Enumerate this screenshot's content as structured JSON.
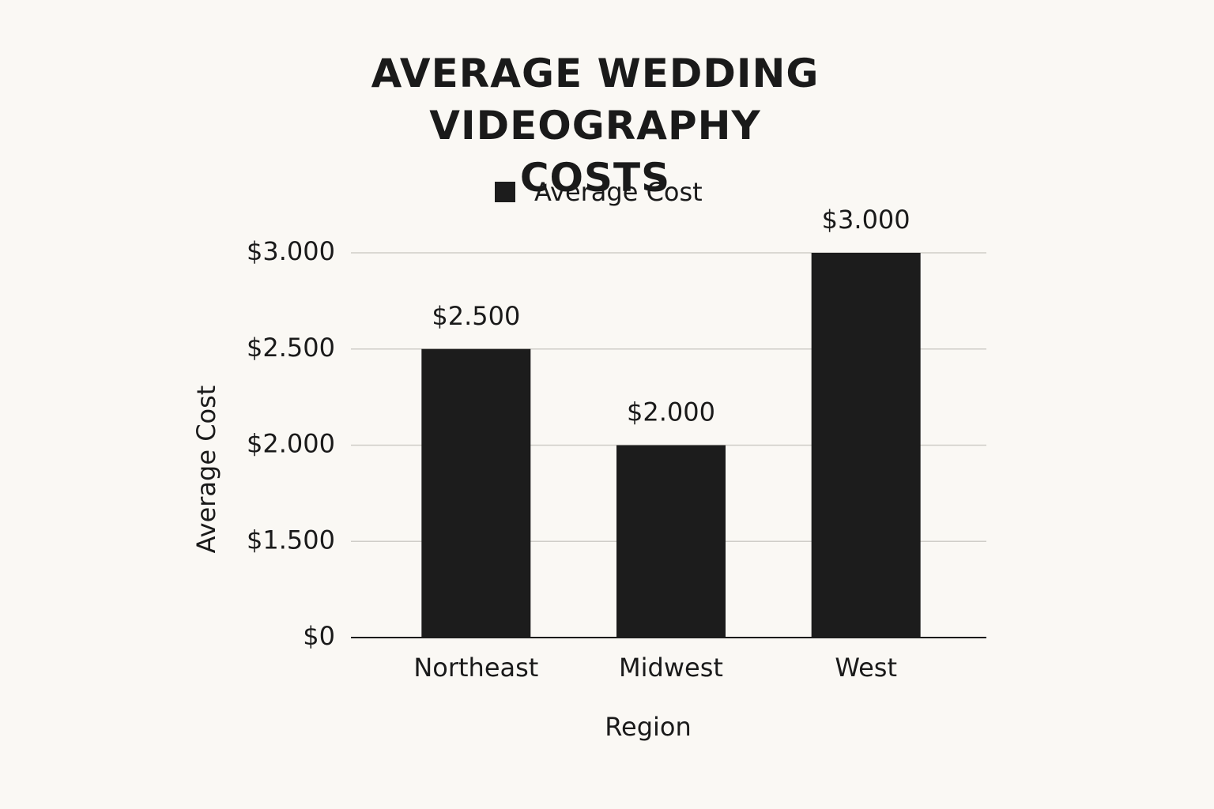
{
  "chart_data": {
    "type": "bar",
    "title": "AVERAGE WEDDING VIDEOGRAPHY COSTS",
    "x_label": "Region",
    "y_label": "Average Cost",
    "categories": [
      "Northeast",
      "Midwest",
      "West"
    ],
    "series": [
      {
        "name": "Average Cost",
        "color": "#1c1c1c",
        "values": [
          2500,
          2000,
          3000
        ],
        "value_labels": [
          "$2.500",
          "$2.000",
          "$3.000"
        ]
      }
    ],
    "ylim": [
      0,
      3000
    ],
    "yticks": [
      {
        "value": 0,
        "label": "$0"
      },
      {
        "value": 1500,
        "label": "$1.500"
      },
      {
        "value": 2000,
        "label": "$2.000"
      },
      {
        "value": 2500,
        "label": "$2.500"
      },
      {
        "value": 3000,
        "label": "$3.000"
      }
    ],
    "grid": true,
    "legend": "top"
  }
}
